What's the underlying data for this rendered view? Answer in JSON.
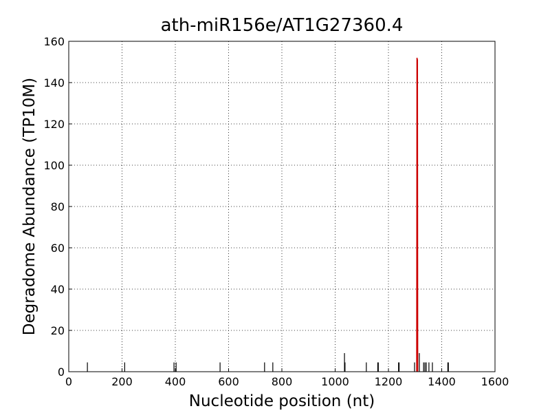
{
  "chart_data": {
    "type": "stem",
    "title": "ath-miR156e/AT1G27360.4",
    "x_label": "Nucleotide position (nt)",
    "y_label": "Degradome Abundance (TP10M)",
    "xlim": [
      0,
      1600
    ],
    "xticks": [
      0,
      200,
      400,
      600,
      800,
      1000,
      1200,
      1400,
      1600
    ],
    "ylim": [
      0,
      160
    ],
    "yticks": [
      0,
      20,
      40,
      60,
      80,
      100,
      120,
      140,
      160
    ],
    "grid": true,
    "series": [
      {
        "color": "#000000",
        "style": "stem",
        "x": [
          70,
          210,
          395,
          403,
          568,
          735,
          766,
          1035,
          1037,
          1117,
          1160,
          1162,
          1238,
          1240,
          1298,
          1316,
          1332,
          1337,
          1342,
          1352,
          1365,
          1423,
          1425
        ],
        "values": [
          4.5,
          4.5,
          4.5,
          4.5,
          4.5,
          4.5,
          4.5,
          9,
          4.5,
          4.5,
          4.5,
          4.5,
          4.5,
          4.5,
          4.5,
          9,
          4.5,
          4.5,
          4.5,
          4.5,
          4.5,
          4.5,
          4.5
        ]
      },
      {
        "color": "#cc0000",
        "style": "line",
        "x": [
          1306,
          1307,
          1309,
          1310
        ],
        "values": [
          0,
          152,
          151,
          0
        ]
      }
    ]
  }
}
